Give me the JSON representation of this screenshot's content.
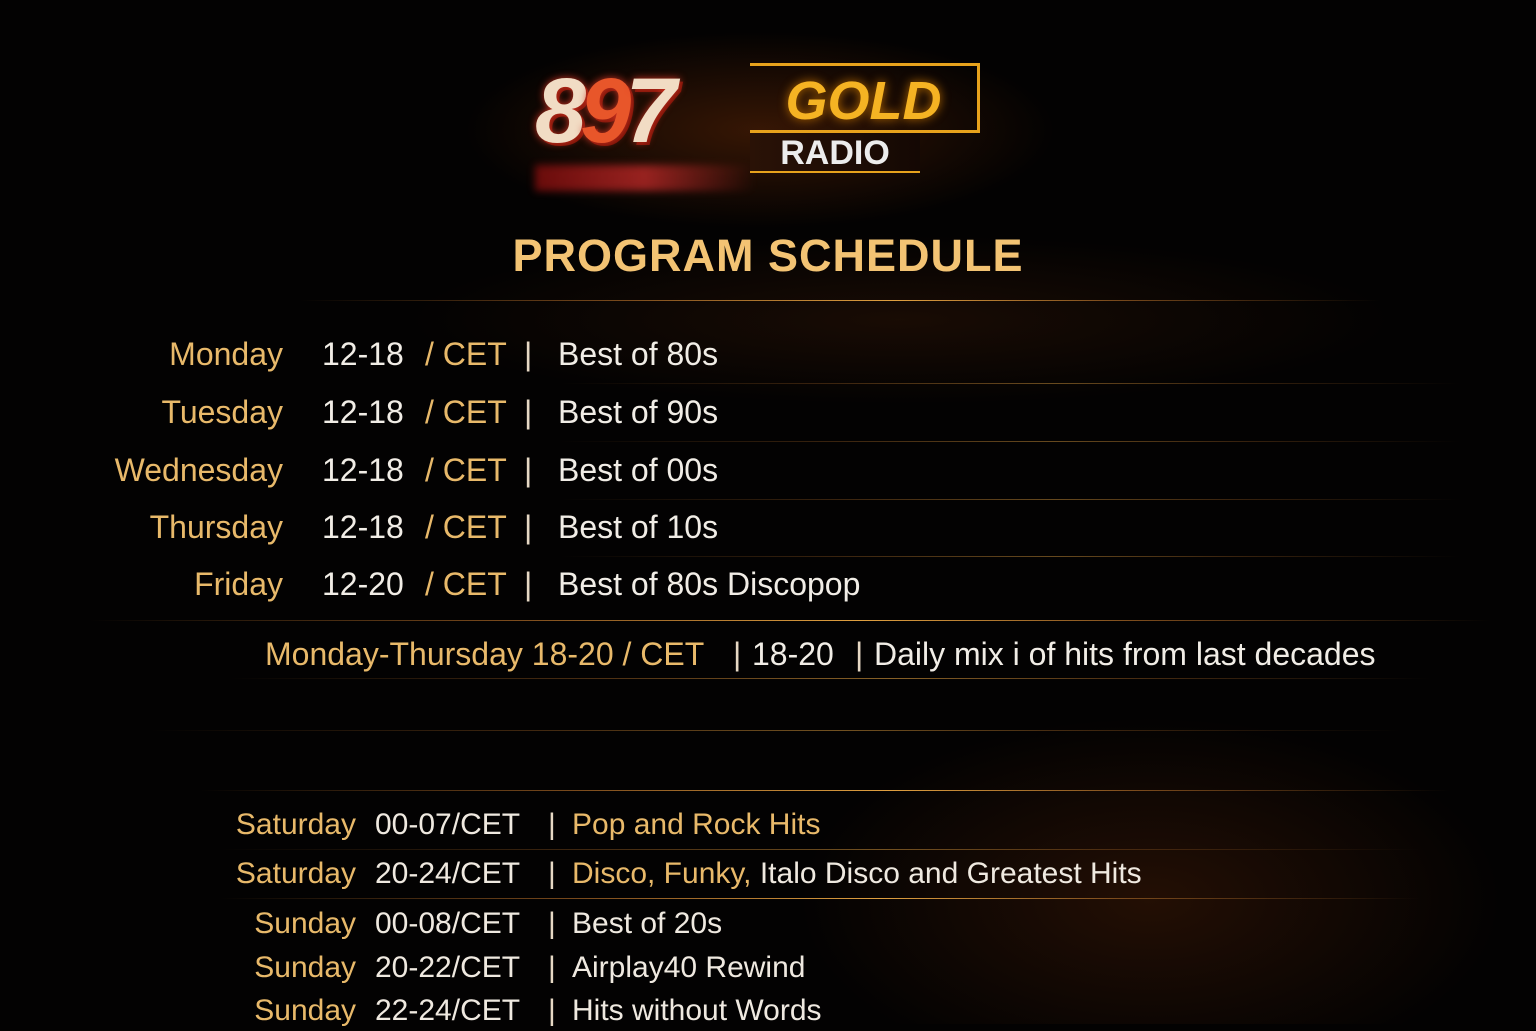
{
  "logo": {
    "number_a": "8",
    "number_b": "9",
    "number_c": "7",
    "word1": "GOLD",
    "word2": "RADIO"
  },
  "title": "PROGRAM SCHEDULE",
  "weekday_rows": [
    {
      "day": "Monday",
      "time": "12-18",
      "zone": "/ CET",
      "sep": "|",
      "program": "Best of 80s"
    },
    {
      "day": "Tuesday",
      "time": "12-18",
      "zone": "/ CET",
      "sep": "|",
      "program": "Best of 90s"
    },
    {
      "day": "Wednesday",
      "time": "12-18",
      "zone": "/ CET",
      "sep": "|",
      "program": "Best of 00s"
    },
    {
      "day": "Thursday",
      "time": "12-18",
      "zone": "/ CET",
      "sep": "|",
      "program": "Best of 10s"
    },
    {
      "day": "Friday",
      "time": "12-20",
      "zone": "/ CET",
      "sep": "|",
      "program": "Best of 80s Discopop"
    }
  ],
  "daily_mix": {
    "days": "Monday-Thursday 18-20 / CET",
    "sep1": "|",
    "time": "18-20",
    "sep2": "|",
    "program": "Daily mix i of hits from last decades"
  },
  "weekend_rows": [
    {
      "day": "Saturday",
      "time": "00-07/CET",
      "sep": "|",
      "program_gold": "Pop and Rock Hits",
      "program_white": ""
    },
    {
      "day": "Saturday",
      "time": "20-24/CET",
      "sep": "|",
      "program_gold": "Disco, Funky,",
      "program_white": "Italo Disco and Greatest Hits"
    },
    {
      "day": "Sunday",
      "time": "00-08/CET",
      "sep": "|",
      "program_gold": "",
      "program_white": "Best of 20s"
    },
    {
      "day": "Sunday",
      "time": "20-22/CET",
      "sep": "|",
      "program_gold": "",
      "program_white": "Airplay40 Rewind"
    },
    {
      "day": "Sunday",
      "time": "22-24/CET",
      "sep": "|",
      "program_gold": "",
      "program_white": "Hits without Words"
    }
  ],
  "colors": {
    "gold": "#e8b96a",
    "title": "#f3c373",
    "text": "#f1ede6",
    "background": "#030202"
  }
}
